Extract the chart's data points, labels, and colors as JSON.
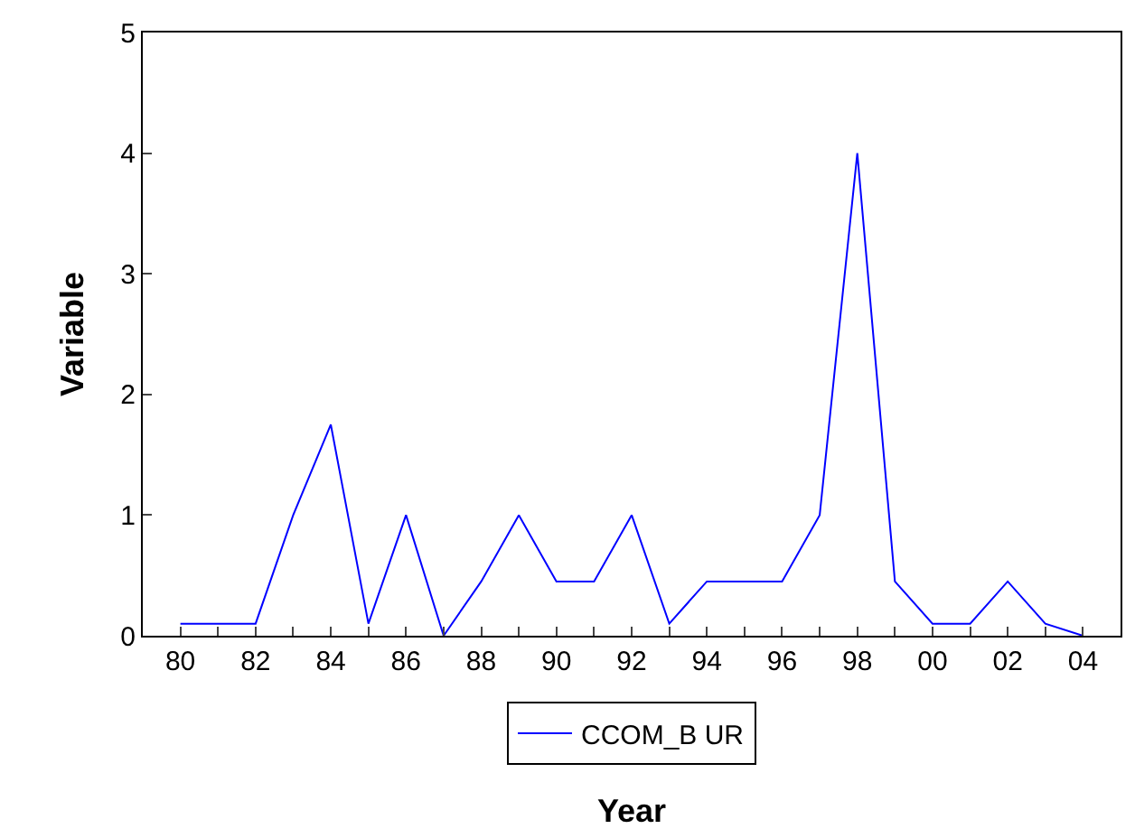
{
  "chart_data": {
    "type": "line",
    "xlabel": "Year",
    "ylabel": "Variable",
    "x": [
      1980,
      1981,
      1982,
      1983,
      1984,
      1985,
      1986,
      1987,
      1988,
      1989,
      1990,
      1991,
      1992,
      1993,
      1994,
      1995,
      1996,
      1997,
      1998,
      1999,
      2000,
      2001,
      2002,
      2003,
      2004
    ],
    "series": [
      {
        "name": "CCOM_B UR",
        "color": "#0000ff",
        "values": [
          0.1,
          0.1,
          0.1,
          1.0,
          1.75,
          0.1,
          1.0,
          0,
          0.45,
          1.0,
          0.45,
          0.45,
          1.0,
          0.1,
          0.45,
          0.45,
          0.45,
          1.0,
          4.0,
          0.45,
          0.1,
          0.1,
          0.45,
          0.1,
          0.0
        ]
      }
    ],
    "xlim": [
      1979,
      2005
    ],
    "xticks": [
      {
        "value": 1980,
        "label": "80"
      },
      {
        "value": 1981,
        "label": null
      },
      {
        "value": 1982,
        "label": "82"
      },
      {
        "value": 1983,
        "label": null
      },
      {
        "value": 1984,
        "label": "84"
      },
      {
        "value": 1985,
        "label": null
      },
      {
        "value": 1986,
        "label": "86"
      },
      {
        "value": 1987,
        "label": null
      },
      {
        "value": 1988,
        "label": "88"
      },
      {
        "value": 1989,
        "label": null
      },
      {
        "value": 1990,
        "label": "90"
      },
      {
        "value": 1991,
        "label": null
      },
      {
        "value": 1992,
        "label": "92"
      },
      {
        "value": 1993,
        "label": null
      },
      {
        "value": 1994,
        "label": "94"
      },
      {
        "value": 1995,
        "label": null
      },
      {
        "value": 1996,
        "label": "96"
      },
      {
        "value": 1997,
        "label": null
      },
      {
        "value": 1998,
        "label": "98"
      },
      {
        "value": 1999,
        "label": null
      },
      {
        "value": 2000,
        "label": "00"
      },
      {
        "value": 2001,
        "label": null
      },
      {
        "value": 2002,
        "label": "02"
      },
      {
        "value": 2003,
        "label": null
      },
      {
        "value": 2004,
        "label": "04"
      }
    ],
    "ylim": [
      0,
      5
    ],
    "yticks": [
      0,
      1,
      2,
      3,
      4,
      5
    ],
    "legend": "bottom",
    "marker": "none",
    "line_style": "solid"
  }
}
